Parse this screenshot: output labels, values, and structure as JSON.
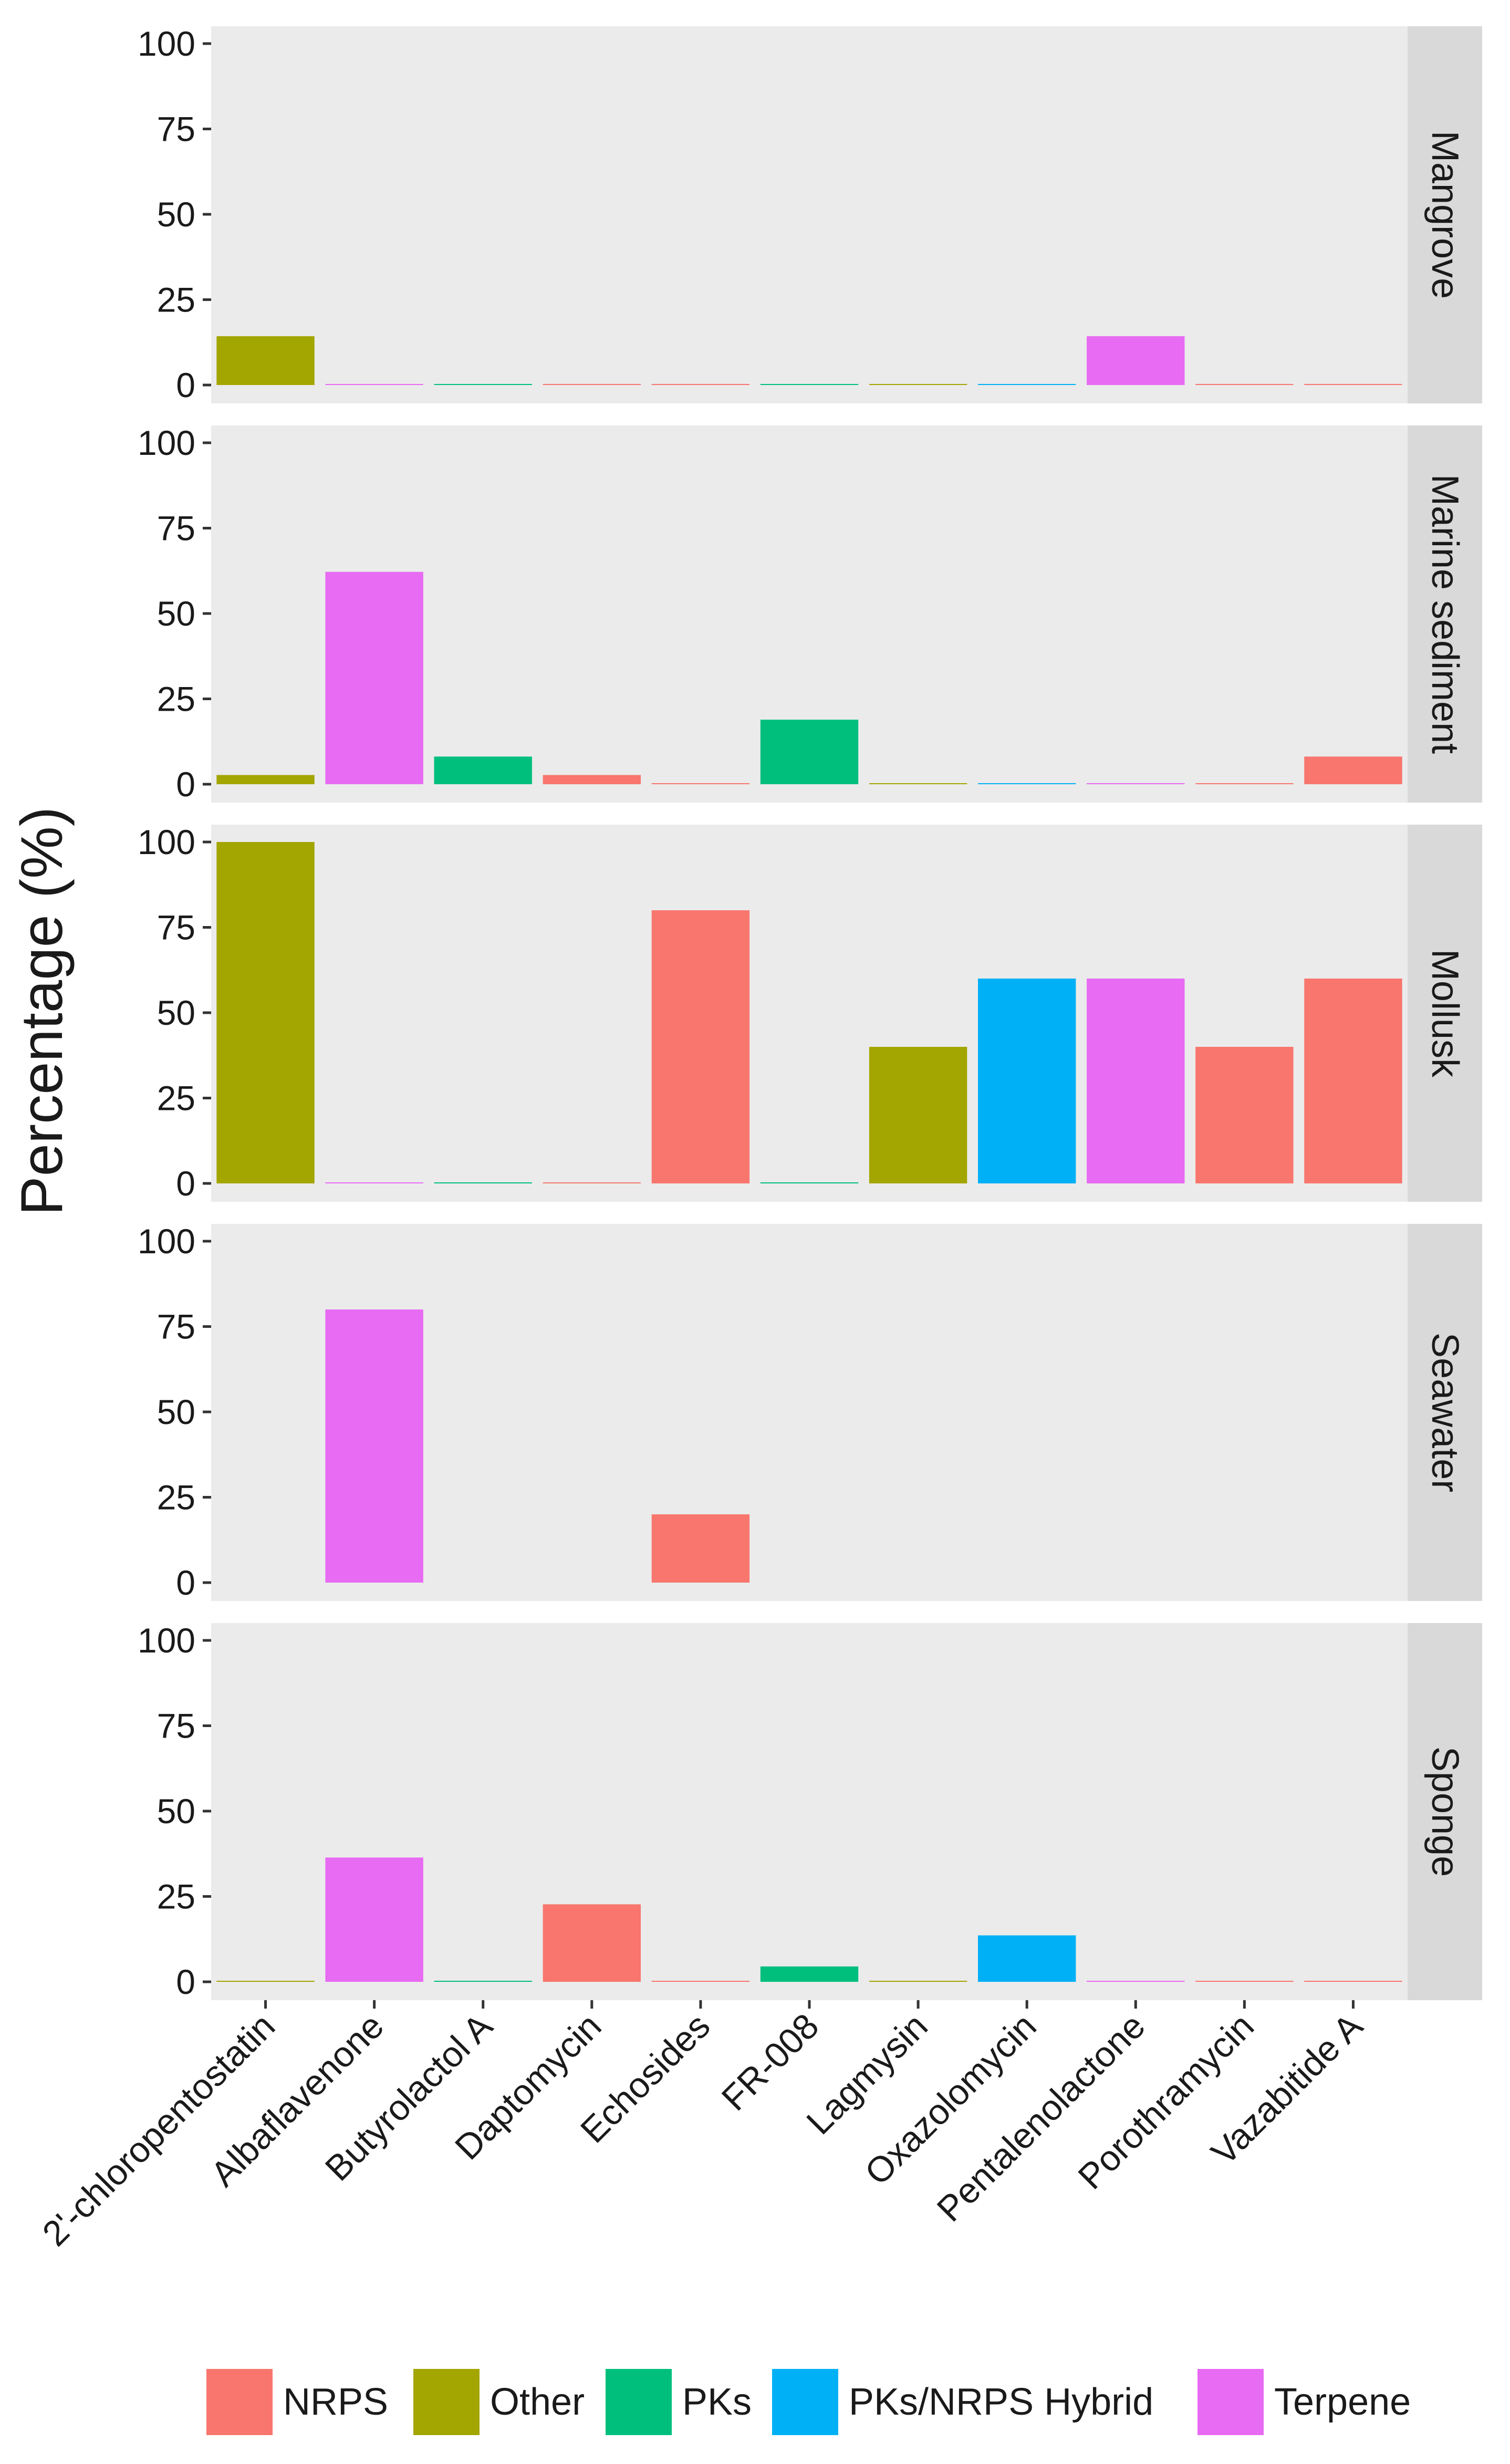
{
  "chart_data": {
    "type": "bar",
    "facet": "rows",
    "title": "",
    "xlabel": "",
    "ylabel": "Percentage (%)",
    "ylim": [
      0,
      100
    ],
    "yticks": [
      0,
      25,
      50,
      75,
      100
    ],
    "grid": false,
    "legend_position": "bottom",
    "categories": [
      "2'-chloropentostatin",
      "Albaflavenone",
      "Butyrolactol A",
      "Daptomycin",
      "Echosides",
      "FR-008",
      "Lagmysin",
      "Oxazolomycin",
      "Pentalenolactone",
      "Porothramycin",
      "Vazabitide A"
    ],
    "category_types": [
      "Other",
      "Terpene",
      "PKs",
      "NRPS",
      "NRPS",
      "PKs",
      "Other",
      "PKs/NRPS Hybrid",
      "Terpene",
      "NRPS",
      "NRPS"
    ],
    "legend": [
      {
        "name": "NRPS",
        "color": "#F8766D"
      },
      {
        "name": "Other",
        "color": "#A3A500"
      },
      {
        "name": "PKs",
        "color": "#00BF7D"
      },
      {
        "name": "PKs/NRPS Hybrid",
        "color": "#00B0F6"
      },
      {
        "name": "Terpene",
        "color": "#E76BF3"
      }
    ],
    "panels": [
      {
        "name": "Mangrove",
        "values": [
          14.3,
          0,
          0,
          0,
          0,
          0,
          0,
          0,
          14.3,
          0,
          0
        ]
      },
      {
        "name": "Marine sediment",
        "values": [
          2.7,
          62.2,
          8.1,
          2.7,
          0,
          18.9,
          0,
          0,
          0,
          0,
          8.1
        ]
      },
      {
        "name": "Mollusk",
        "values": [
          100,
          0,
          0,
          0,
          80,
          0,
          40,
          60,
          60,
          40,
          60
        ]
      },
      {
        "name": "Seawater",
        "values": [
          null,
          80,
          null,
          null,
          20,
          null,
          null,
          null,
          null,
          null,
          null
        ]
      },
      {
        "name": "Sponge",
        "values": [
          0,
          36.4,
          0,
          22.7,
          0,
          4.5,
          0,
          13.6,
          0,
          0,
          0
        ]
      }
    ]
  }
}
